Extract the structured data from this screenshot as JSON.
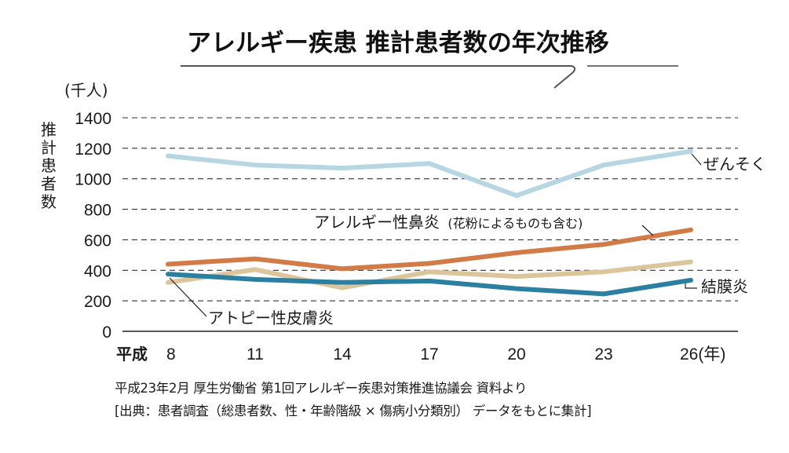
{
  "chart_data": {
    "type": "line",
    "title": "アレルギー疾患 推計患者数の年次推移",
    "unit_label": "(千人)",
    "ylabel": "推計患者数",
    "xlabel": "(年)",
    "era_label": "平成",
    "x": [
      8,
      11,
      14,
      17,
      20,
      23,
      26
    ],
    "x_tick_labels": [
      "8",
      "11",
      "14",
      "17",
      "20",
      "23",
      "26(年)"
    ],
    "ylim": [
      0,
      1400
    ],
    "y_ticks": [
      0,
      200,
      400,
      600,
      800,
      1000,
      1200,
      1400
    ],
    "y_tick_labels": [
      "0",
      "200",
      "400",
      "600",
      "800",
      "1000",
      "1200",
      "1400"
    ],
    "grid": "dashed-horizontal",
    "series": [
      {
        "name": "ぜんそく",
        "label": "ぜんそく",
        "color": "#b6d6e2",
        "values": [
          1150,
          1090,
          1070,
          1100,
          890,
          1090,
          1180
        ]
      },
      {
        "name": "アレルギー性鼻炎",
        "label": "アレルギー性鼻炎",
        "label_note": "(花粉によるものも含む)",
        "color": "#d27b46",
        "values": [
          440,
          475,
          410,
          445,
          515,
          570,
          665
        ]
      },
      {
        "name": "アトピー性皮膚炎",
        "label": "アトピー性皮膚炎",
        "color": "#ddc59b",
        "values": [
          320,
          405,
          285,
          390,
          360,
          390,
          455
        ]
      },
      {
        "name": "結膜炎",
        "label": "結膜炎",
        "color": "#2b7fa1",
        "values": [
          375,
          340,
          320,
          330,
          280,
          245,
          335
        ]
      }
    ]
  },
  "source": {
    "line1": "平成23年2月 厚生労働省 第1回アレルギー疾患対策推進協議会 資料より",
    "line2": "[出典：患者調査（総患者数、性・年齢階級 × 傷病小分類別） データをもとに集計]"
  }
}
